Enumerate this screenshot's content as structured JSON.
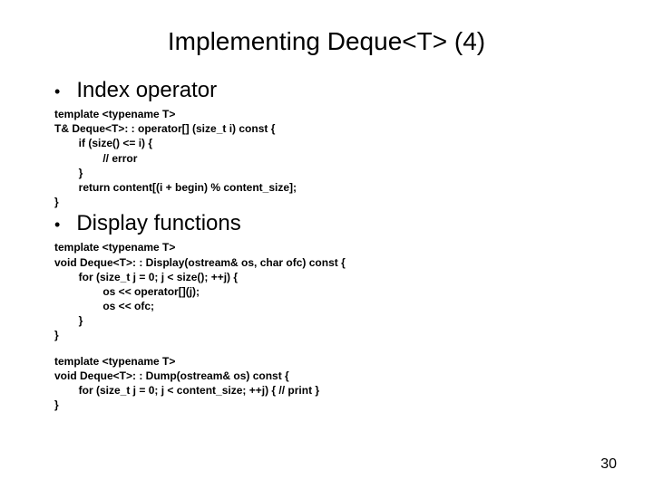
{
  "title": "Implementing Deque<T> (4)",
  "bullets": {
    "b1": "Index operator",
    "b2": "Display functions"
  },
  "code": {
    "block1": "template <typename T>\nT& Deque<T>: : operator[] (size_t i) const {\n        if (size() <= i) {\n                // error\n        }\n        return content[(i + begin) % content_size];\n}",
    "block2": "template <typename T>\nvoid Deque<T>: : Display(ostream& os, char ofc) const {\n        for (size_t j = 0; j < size(); ++j) {\n                os << operator[](j);\n                os << ofc;\n        }\n}",
    "block3": "template <typename T>\nvoid Deque<T>: : Dump(ostream& os) const {\n        for (size_t j = 0; j < content_size; ++j) { // print }\n}"
  },
  "pagenum": "30",
  "colors": {
    "background": "#ffffff",
    "text": "#000000"
  },
  "fontsizes": {
    "title": 28,
    "bullet": 24,
    "code": 12,
    "pagenum": 16
  }
}
